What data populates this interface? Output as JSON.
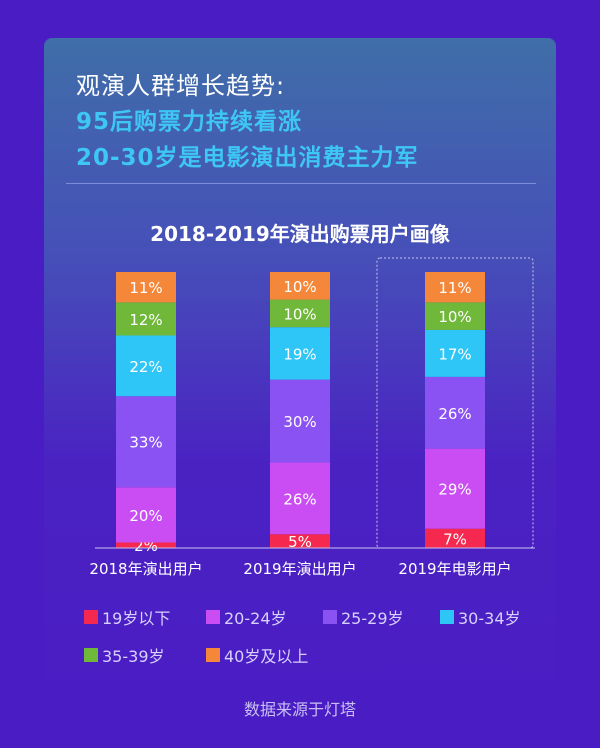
{
  "header": {
    "line1": "观演人群增长趋势:",
    "line2": "95后购票力持续看涨",
    "line3": "20-30岁是电影演出消费主力军"
  },
  "chart_data": {
    "type": "bar",
    "stacked": true,
    "title": "2018-2019年演出购票用户画像",
    "categories": [
      "2018年演出用户",
      "2019年演出用户",
      "2019年电影用户"
    ],
    "highlighted_category": "2019年电影用户",
    "series": [
      {
        "name": "19岁以下",
        "color": "#f5284f",
        "values": [
          2,
          5,
          7
        ]
      },
      {
        "name": "20-24岁",
        "color": "#c94df2",
        "values": [
          20,
          26,
          29
        ]
      },
      {
        "name": "25-29岁",
        "color": "#8a52f2",
        "values": [
          33,
          30,
          26
        ]
      },
      {
        "name": "30-34岁",
        "color": "#2ec5f7",
        "values": [
          22,
          19,
          17
        ]
      },
      {
        "name": "35-39岁",
        "color": "#6fb83a",
        "values": [
          12,
          10,
          10
        ]
      },
      {
        "name": "40岁及以上",
        "color": "#f5873a",
        "values": [
          11,
          10,
          11
        ]
      }
    ],
    "unit": "%",
    "legend": "bottom"
  },
  "footer": {
    "source": "数据来源于灯塔"
  }
}
